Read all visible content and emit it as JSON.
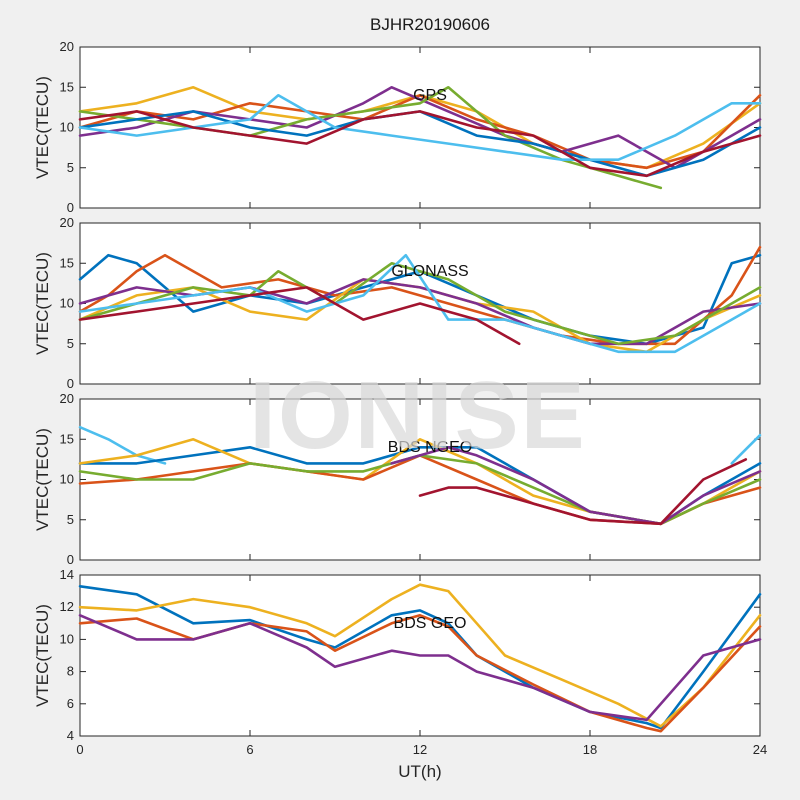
{
  "figure": {
    "title": "BJHR20190606",
    "xlabel": "UT(h)",
    "watermark": "IONISE"
  },
  "colors": {
    "blue": "#0072BD",
    "orange": "#D95319",
    "yellow": "#EDB120",
    "purple": "#7E2F8E",
    "green": "#77AC30",
    "cyan": "#4DBEEE",
    "maroon": "#A2142F"
  },
  "chart_data": [
    {
      "type": "line",
      "label": "GPS",
      "ylabel": "VTEC(TECU)",
      "xlim": [
        0,
        24
      ],
      "ylim": [
        0,
        20
      ],
      "xticks": [
        "0",
        "6",
        "12",
        "18",
        "24"
      ],
      "yticks": [
        "0",
        "5",
        "10",
        "15",
        "20"
      ],
      "grid": false,
      "series": [
        {
          "color": "yellow",
          "x": [
            0,
            2,
            4,
            6,
            8,
            10,
            12,
            14,
            16,
            18,
            20,
            22,
            24
          ],
          "y": [
            12,
            13,
            15,
            12,
            11,
            12,
            14,
            12,
            8,
            6,
            5,
            8,
            13
          ]
        },
        {
          "color": "orange",
          "x": [
            0,
            2,
            4,
            6,
            8,
            10,
            12,
            14,
            16,
            18,
            20,
            22,
            24
          ],
          "y": [
            10,
            12,
            11,
            13,
            12,
            11,
            14,
            11,
            9,
            6,
            5,
            7,
            14
          ]
        },
        {
          "color": "purple",
          "x": [
            0,
            2,
            4,
            6,
            8,
            10,
            11,
            13,
            15,
            17,
            19,
            21,
            23,
            24
          ],
          "y": [
            9,
            10,
            12,
            11,
            10,
            13,
            15,
            12,
            9,
            7,
            9,
            5,
            9,
            11
          ]
        },
        {
          "color": "green",
          "x": [
            0,
            2,
            4,
            6,
            8,
            10,
            12,
            13,
            15,
            17,
            19,
            20.5
          ],
          "y": [
            12,
            11,
            10,
            9,
            11,
            12,
            13,
            15,
            9,
            6,
            4,
            2.5
          ]
        },
        {
          "color": "blue",
          "x": [
            0,
            2,
            4,
            6,
            8,
            10,
            12,
            14,
            16,
            18,
            20,
            22,
            24
          ],
          "y": [
            10,
            11,
            12,
            10,
            9,
            11,
            12,
            9,
            8,
            6,
            4,
            6,
            10
          ]
        },
        {
          "color": "cyan",
          "x": [
            0,
            2,
            4,
            6,
            7,
            9,
            11,
            13,
            15,
            17,
            19,
            21,
            23,
            24
          ],
          "y": [
            10,
            9,
            10,
            11,
            14,
            10,
            9,
            8,
            7,
            6,
            6,
            9,
            13,
            13
          ]
        },
        {
          "color": "maroon",
          "x": [
            0,
            2,
            4,
            6,
            8,
            10,
            12,
            14,
            16,
            18,
            20,
            22,
            24
          ],
          "y": [
            11,
            12,
            10,
            9,
            8,
            11,
            12,
            10,
            9,
            5,
            4,
            7,
            9
          ]
        }
      ]
    },
    {
      "type": "line",
      "label": "GLONASS",
      "ylabel": "VTEC(TECU)",
      "xlim": [
        0,
        24
      ],
      "ylim": [
        0,
        20
      ],
      "xticks": [
        "0",
        "6",
        "12",
        "18",
        "24"
      ],
      "yticks": [
        "0",
        "5",
        "10",
        "15",
        "20"
      ],
      "grid": false,
      "series": [
        {
          "color": "blue",
          "x": [
            0,
            1,
            2,
            3,
            4,
            6,
            8,
            10,
            12,
            14,
            16,
            18,
            20,
            22,
            23,
            24
          ],
          "y": [
            13,
            16,
            15,
            12,
            9,
            11,
            10,
            12,
            14,
            11,
            8,
            6,
            5,
            7,
            15,
            16
          ]
        },
        {
          "color": "orange",
          "x": [
            0,
            1,
            2,
            3,
            5,
            7,
            9,
            11,
            13,
            15,
            17,
            19,
            21,
            23,
            24
          ],
          "y": [
            9,
            11,
            14,
            16,
            12,
            13,
            11,
            12,
            10,
            8,
            6,
            5,
            5,
            11,
            17
          ]
        },
        {
          "color": "yellow",
          "x": [
            0,
            2,
            4,
            6,
            8,
            10,
            12,
            14,
            16,
            18,
            20,
            22,
            24
          ],
          "y": [
            8,
            11,
            12,
            9,
            8,
            13,
            12,
            10,
            9,
            5,
            4,
            8,
            11
          ]
        },
        {
          "color": "purple",
          "x": [
            0,
            2,
            4,
            6,
            8,
            10,
            12,
            14,
            16,
            18,
            20,
            22,
            24
          ],
          "y": [
            10,
            12,
            11,
            12,
            10,
            13,
            12,
            10,
            7,
            5,
            5,
            9,
            10
          ]
        },
        {
          "color": "green",
          "x": [
            0,
            2,
            4,
            6,
            7,
            9,
            11,
            13,
            15,
            17,
            19,
            21,
            23,
            24
          ],
          "y": [
            8,
            10,
            12,
            11,
            14,
            10,
            15,
            13,
            9,
            7,
            5,
            6,
            10,
            12
          ]
        },
        {
          "color": "cyan",
          "x": [
            0,
            2,
            4,
            6,
            8,
            10,
            11.5,
            13,
            15,
            17,
            19,
            21,
            23,
            24
          ],
          "y": [
            9,
            10,
            11,
            12,
            9,
            11,
            16,
            8,
            8,
            6,
            4,
            4,
            8,
            10
          ]
        },
        {
          "color": "maroon",
          "x": [
            0,
            2,
            4,
            6,
            8,
            10,
            12,
            13,
            14,
            15.5
          ],
          "y": [
            8,
            9,
            10,
            11,
            12,
            8,
            10,
            9,
            8,
            5
          ]
        }
      ]
    },
    {
      "type": "line",
      "label": "BDS NGEO",
      "ylabel": "VTEC(TECU)",
      "xlim": [
        0,
        24
      ],
      "ylim": [
        0,
        20
      ],
      "xticks": [
        "0",
        "6",
        "12",
        "18",
        "24"
      ],
      "yticks": [
        "0",
        "5",
        "10",
        "15",
        "20"
      ],
      "grid": false,
      "series": [
        {
          "color": "cyan",
          "x": [
            0,
            1,
            2,
            3
          ],
          "y": [
            16.5,
            15,
            13,
            12
          ]
        },
        {
          "color": "cyan",
          "x": [
            23,
            24
          ],
          "y": [
            12,
            15.5
          ]
        },
        {
          "color": "blue",
          "x": [
            0,
            2,
            4,
            6,
            8,
            10,
            12,
            14,
            16,
            18,
            20.5,
            22,
            24
          ],
          "y": [
            12,
            12,
            13,
            14,
            12,
            12,
            14,
            14,
            10,
            6,
            4.5,
            8,
            12
          ]
        },
        {
          "color": "yellow",
          "x": [
            0,
            2,
            4,
            6,
            8,
            10,
            12,
            14,
            16,
            18,
            20.5,
            22,
            24
          ],
          "y": [
            12,
            13,
            15,
            12,
            11,
            10,
            15,
            12,
            8,
            6,
            4.5,
            7,
            11
          ]
        },
        {
          "color": "orange",
          "x": [
            0,
            2,
            4,
            6,
            8,
            10,
            12,
            14,
            16,
            18,
            20.5,
            22,
            24
          ],
          "y": [
            9.5,
            10,
            11,
            12,
            11,
            10,
            13,
            10,
            7,
            5,
            4.5,
            7,
            9
          ]
        },
        {
          "color": "green",
          "x": [
            0,
            2,
            4,
            6,
            8,
            10,
            12,
            14,
            16,
            18,
            20.5,
            22,
            24
          ],
          "y": [
            11,
            10,
            10,
            12,
            11,
            11,
            13,
            12,
            9,
            6,
            4.5,
            7,
            10
          ]
        },
        {
          "color": "purple",
          "x": [
            11,
            12,
            13,
            14,
            16,
            18,
            20.5,
            22,
            24
          ],
          "y": [
            12,
            13,
            14,
            13,
            10,
            6,
            4.5,
            8,
            11
          ]
        },
        {
          "color": "maroon",
          "x": [
            12,
            13,
            14,
            16,
            18,
            20.5,
            22,
            23.5
          ],
          "y": [
            8,
            9,
            9,
            7,
            5,
            4.5,
            10,
            12.5
          ]
        }
      ]
    },
    {
      "type": "line",
      "label": "BDS GEO",
      "ylabel": "VTEC(TECU)",
      "xlim": [
        0,
        24
      ],
      "ylim": [
        4,
        14
      ],
      "xticks": [
        "0",
        "6",
        "12",
        "18",
        "24"
      ],
      "yticks": [
        "4",
        "6",
        "8",
        "10",
        "12",
        "14"
      ],
      "grid": false,
      "series": [
        {
          "color": "blue",
          "x": [
            0,
            2,
            4,
            6,
            8,
            9,
            11,
            12,
            13,
            14,
            16,
            18,
            20,
            20.5,
            22,
            24
          ],
          "y": [
            13.3,
            12.8,
            11,
            11.2,
            10,
            9.5,
            11.5,
            11.8,
            11,
            9,
            7,
            5.5,
            4.8,
            4.5,
            8,
            12.8
          ]
        },
        {
          "color": "yellow",
          "x": [
            0,
            2,
            4,
            6,
            8,
            9,
            11,
            12,
            13,
            14,
            15,
            17,
            19,
            20.5,
            22,
            24
          ],
          "y": [
            12,
            11.8,
            12.5,
            12,
            11,
            10.2,
            12.5,
            13.4,
            13,
            11,
            9,
            7.5,
            6,
            4.6,
            7,
            11.5
          ]
        },
        {
          "color": "orange",
          "x": [
            0,
            2,
            4,
            6,
            8,
            9,
            11,
            12,
            13,
            14,
            16,
            18,
            20,
            20.5,
            22,
            24
          ],
          "y": [
            11,
            11.3,
            10,
            11,
            10.5,
            9.3,
            11,
            11.5,
            10.8,
            9,
            7.2,
            5.5,
            4.5,
            4.3,
            7,
            10.8
          ]
        },
        {
          "color": "purple",
          "x": [
            0,
            2,
            4,
            6,
            8,
            9,
            11,
            12,
            13,
            14,
            16,
            18,
            20,
            21,
            22,
            24
          ],
          "y": [
            11.5,
            10,
            10,
            11,
            9.5,
            8.3,
            9.3,
            9,
            9,
            8,
            7,
            5.5,
            5,
            7,
            9,
            10
          ]
        }
      ]
    }
  ]
}
